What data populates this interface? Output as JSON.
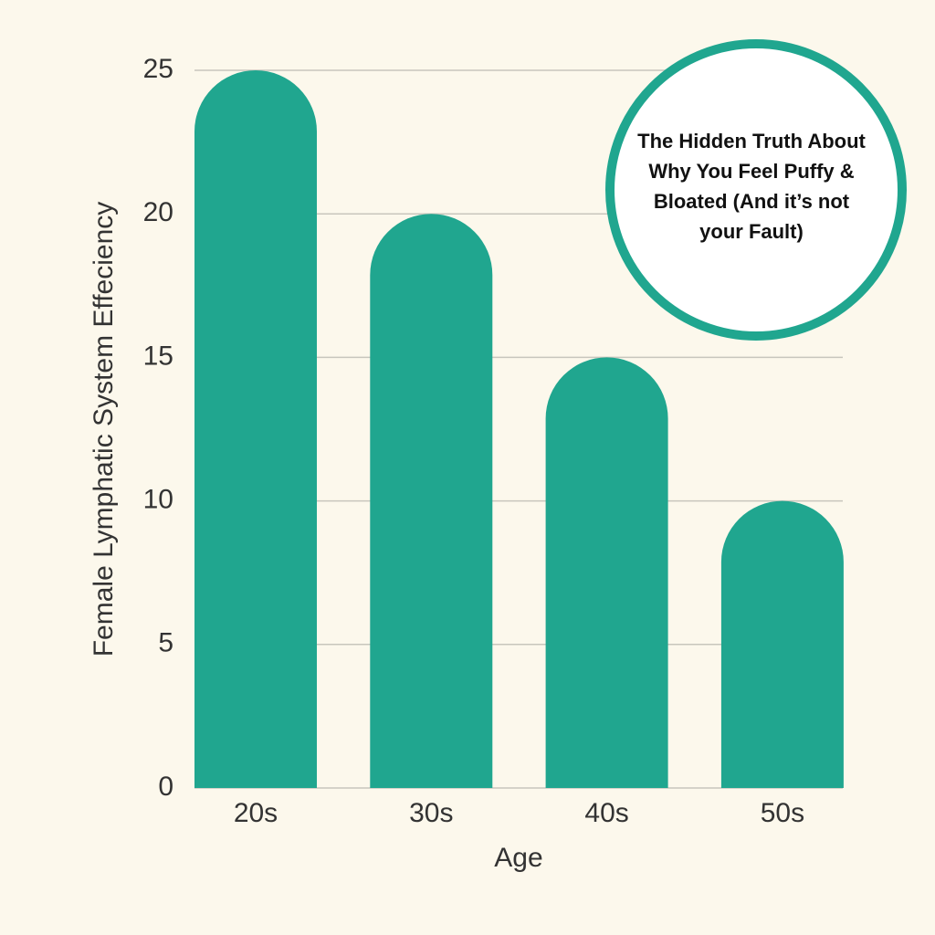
{
  "chart_data": {
    "type": "bar",
    "x_label": "Age",
    "y_label": "Female Lymphatic System Effeciency",
    "annotation": "The Hidden Truth About Why You Feel Puffy & Bloated (And it’s not your Fault)",
    "categories": [
      "20s",
      "30s",
      "40s",
      "50s"
    ],
    "values": [
      25,
      20,
      15,
      10
    ],
    "color": "#20a68f",
    "ylim": [
      0,
      25
    ],
    "yticks": [
      0,
      5,
      10,
      15,
      20,
      25
    ],
    "grid": true
  }
}
